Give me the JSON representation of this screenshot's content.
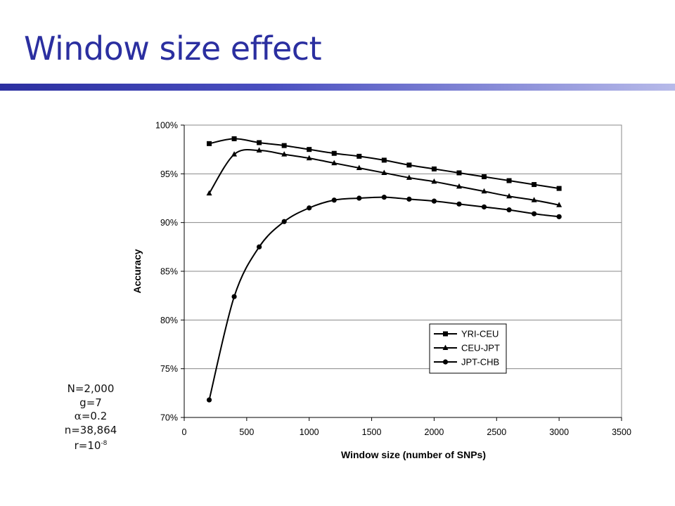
{
  "slide": {
    "title": "Window size effect"
  },
  "params": {
    "N": "N=2,000",
    "g": "g=7",
    "alpha_symbol": "α",
    "alpha_rest": "=0.2",
    "n": "n=38,864",
    "r_base": "r=10",
    "r_exp": "-8"
  },
  "chart_data": {
    "type": "line",
    "title": "",
    "xlabel": "Window size (number of SNPs)",
    "ylabel": "Accuracy",
    "xlim": [
      0,
      3500
    ],
    "ylim": [
      70,
      100
    ],
    "x_ticks": [
      0,
      500,
      1000,
      1500,
      2000,
      2500,
      3000,
      3500
    ],
    "y_ticks": [
      70,
      75,
      80,
      85,
      90,
      95,
      100
    ],
    "y_tick_format": "percent",
    "grid": "horizontal",
    "legend_position": "lower-right",
    "x": [
      200,
      400,
      600,
      800,
      1000,
      1200,
      1400,
      1600,
      1800,
      2000,
      2200,
      2400,
      2600,
      2800,
      3000
    ],
    "series": [
      {
        "name": "YRI-CEU",
        "marker": "square",
        "values": [
          98.1,
          98.6,
          98.2,
          97.9,
          97.5,
          97.1,
          96.8,
          96.4,
          95.9,
          95.5,
          95.1,
          94.7,
          94.3,
          93.9,
          93.5
        ]
      },
      {
        "name": "CEU-JPT",
        "marker": "triangle",
        "values": [
          93.0,
          97.0,
          97.4,
          97.0,
          96.6,
          96.1,
          95.6,
          95.1,
          94.6,
          94.2,
          93.7,
          93.2,
          92.7,
          92.3,
          91.8
        ]
      },
      {
        "name": "JPT-CHB",
        "marker": "circle",
        "values": [
          71.8,
          82.4,
          87.5,
          90.1,
          91.5,
          92.3,
          92.5,
          92.6,
          92.4,
          92.2,
          91.9,
          91.6,
          91.3,
          90.9,
          90.6
        ]
      }
    ]
  }
}
